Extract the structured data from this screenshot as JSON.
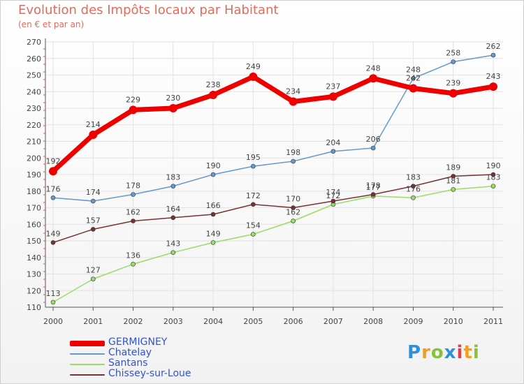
{
  "title": "Evolution des Impôts locaux par Habitant",
  "subtitle": "(en € et par an)",
  "logo": {
    "text": "Proxiti",
    "letters": [
      {
        "ch": "P",
        "color": "#2f8fd8"
      },
      {
        "ch": "r",
        "color": "#f0a020"
      },
      {
        "ch": "o",
        "color": "#88c040"
      },
      {
        "ch": "x",
        "color": "#2f8fd8"
      },
      {
        "ch": "i",
        "color": "#e04050"
      },
      {
        "ch": "t",
        "color": "#f0a020"
      },
      {
        "ch": "i",
        "color": "#88c040"
      }
    ]
  },
  "chart_data": {
    "type": "line",
    "title": "Evolution des Impôts locaux par Habitant",
    "xlabel": "",
    "ylabel": "(en € et par an)",
    "x": [
      "2000",
      "2001",
      "2002",
      "2003",
      "2004",
      "2005",
      "2006",
      "2007",
      "2008",
      "2009",
      "2010",
      "2011"
    ],
    "ylim": [
      110,
      270
    ],
    "yticks": [
      110,
      120,
      130,
      140,
      150,
      160,
      170,
      180,
      190,
      200,
      210,
      220,
      230,
      240,
      250,
      260,
      270
    ],
    "grid": true,
    "series": [
      {
        "name": "GERMIGNEY",
        "color": "#ee0000",
        "values": [
          192,
          214,
          229,
          230,
          238,
          249,
          234,
          237,
          248,
          242,
          239,
          243
        ]
      },
      {
        "name": "Chatelay",
        "color": "#6699cc",
        "values": [
          176,
          174,
          178,
          183,
          190,
          195,
          198,
          204,
          206,
          248,
          258,
          262
        ]
      },
      {
        "name": "Santans",
        "color": "#99dd66",
        "values": [
          113,
          127,
          136,
          143,
          149,
          154,
          162,
          172,
          177,
          176,
          181,
          183
        ]
      },
      {
        "name": "Chissey-sur-Loue",
        "color": "#773333",
        "values": [
          149,
          157,
          162,
          164,
          166,
          172,
          170,
          174,
          178,
          183,
          189,
          190
        ]
      }
    ]
  }
}
